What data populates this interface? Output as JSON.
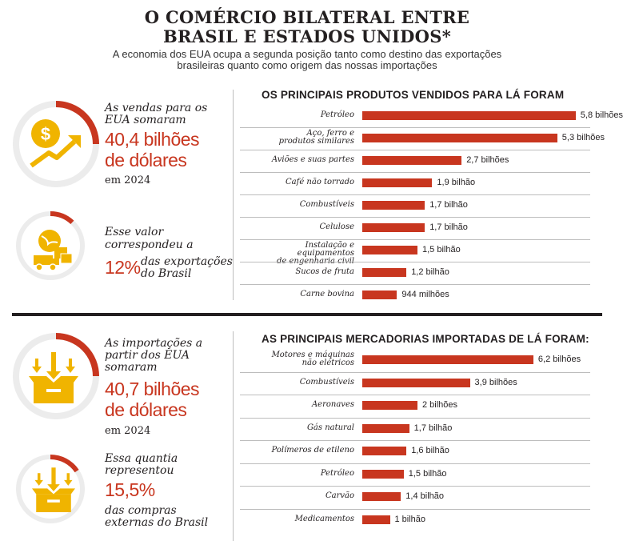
{
  "header": {
    "title_line1": "O COMÉRCIO BILATERAL ENTRE",
    "title_line2": "BRASIL E ESTADOS UNIDOS*",
    "subtitle_line1": "A economia dos EUA ocupa a segunda posição tanto como destino das exportações",
    "subtitle_line2": "brasileiras quanto como origem das nossas importações"
  },
  "exports_stats": {
    "sales_text_l1": "As vendas para os",
    "sales_text_l2": "EUA somaram",
    "sales_value_l1": "40,4 bilhões",
    "sales_value_l2": "de dólares",
    "sales_year": "em 2024",
    "share_text_l1": "Esse valor",
    "share_text_l2": "correspondeu a",
    "share_value": "12%",
    "share_text_l3": "das exportações",
    "share_text_l4": "do Brasil",
    "share_fraction": 0.12,
    "icon_top": "dollar-growth-icon",
    "icon_bottom": "globe-truck-boxes-icon"
  },
  "imports_stats": {
    "text_l1": "As importações a",
    "text_l2": "partir dos EUA",
    "text_l3": "somaram",
    "value_l1": "40,7 bilhões",
    "value_l2": "de dólares",
    "year": "em 2024",
    "share_text_l1": "Essa quantia",
    "share_text_l2": "representou",
    "share_value": "15,5%",
    "share_text_l3": "das compras",
    "share_text_l4": "externas do Brasil",
    "share_fraction": 0.155,
    "icon_top": "box-arrows-in-icon",
    "icon_bottom": "box-arrows-in-icon"
  },
  "colors": {
    "accent": "#c8361f",
    "icon_yellow": "#f0b400",
    "ring_gray": "#e6e6e6"
  },
  "chart_data": [
    {
      "type": "bar",
      "orientation": "horizontal",
      "title": "OS PRINCIPAIS PRODUTOS VENDIDOS PARA LÁ FORAM",
      "unit": "bilhões de dólares",
      "categories": [
        [
          "Petróleo"
        ],
        [
          "Aço, ferro e",
          "produtos similares"
        ],
        [
          "Aviões e suas partes"
        ],
        [
          "Café não torrado"
        ],
        [
          "Combustíveis"
        ],
        [
          "Celulose"
        ],
        [
          "Instalação e equipamentos",
          "de engenharia civil"
        ],
        [
          "Sucos de fruta"
        ],
        [
          "Carne bovina"
        ]
      ],
      "values": [
        5.8,
        5.3,
        2.7,
        1.9,
        1.7,
        1.7,
        1.5,
        1.2,
        0.944
      ],
      "labels": [
        "5,8 bilhões",
        "5,3 bilhões",
        "2,7 bilhões",
        "1,9 bilhão",
        "1,7 bilhão",
        "1,7 bilhão",
        "1,5 bilhão",
        "1,2 bilhão",
        "944 milhões"
      ]
    },
    {
      "type": "bar",
      "orientation": "horizontal",
      "title": "AS PRINCIPAIS MERCADORIAS IMPORTADAS DE LÁ FORAM:",
      "unit": "bilhões de dólares",
      "categories": [
        [
          "Motores e máquinas",
          "não elétricos"
        ],
        [
          "Combustíveis"
        ],
        [
          "Aeronaves"
        ],
        [
          "Gás natural"
        ],
        [
          "Polímeros de etileno"
        ],
        [
          "Petróleo"
        ],
        [
          "Carvão"
        ],
        [
          "Medicamentos"
        ]
      ],
      "values": [
        6.2,
        3.9,
        2.0,
        1.7,
        1.6,
        1.5,
        1.4,
        1.0
      ],
      "labels": [
        "6,2 bilhões",
        "3,9 bilhões",
        "2 bilhões",
        "1,7 bilhão",
        "1,6 bilhão",
        "1,5 bilhão",
        "1,4 bilhão",
        "1 bilhão"
      ]
    }
  ]
}
